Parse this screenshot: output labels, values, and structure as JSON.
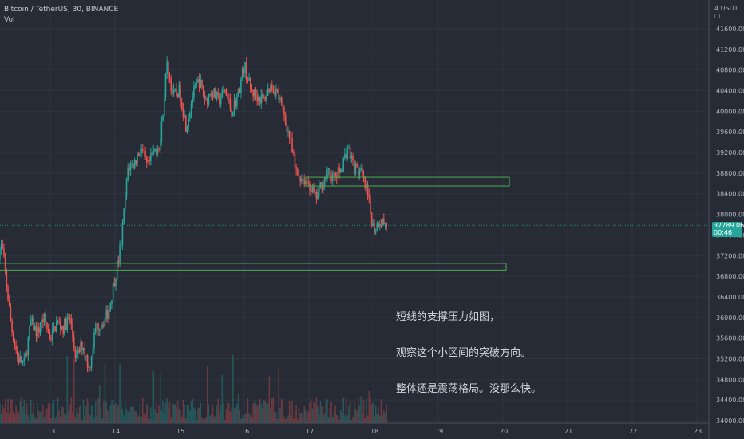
{
  "header": {
    "symbol_line": "Bitcoin / TetherUS, 30, BINANCE",
    "volume_label": "Vol"
  },
  "axis": {
    "currency_label": "4 USDT ▢"
  },
  "price_tag": {
    "price": "37789.06",
    "countdown": "00:46"
  },
  "annotation": {
    "lines": [
      "短线的支撑压力如图，",
      "观察这个小区间的突破方向。",
      "整体还是震荡格局。没那么快。"
    ]
  },
  "colors": {
    "background": "#262b36",
    "up": "#26a69a",
    "down": "#ef5350",
    "zone": "#4caf50",
    "last_price_line": "#26a69a"
  },
  "chart_data": {
    "type": "candlestick",
    "title": "Bitcoin / TetherUS, 30, BINANCE",
    "x_ticks": [
      "13",
      "14",
      "15",
      "16",
      "17",
      "18",
      "19",
      "20",
      "21",
      "22",
      "23"
    ],
    "y_ticks": [
      "34000.00",
      "34400.00",
      "34800.00",
      "35200.00",
      "35600.00",
      "36000.00",
      "36400.00",
      "36800.00",
      "37200.00",
      "37600.00",
      "38000.00",
      "38400.00",
      "38800.00",
      "39200.00",
      "39600.00",
      "40000.00",
      "40400.00",
      "40800.00",
      "41200.00",
      "41600.00"
    ],
    "ylim": [
      34000,
      41800
    ],
    "last_price": 37789.06,
    "price_path": [
      [
        12.2,
        37250
      ],
      [
        12.25,
        37400
      ],
      [
        12.3,
        36900
      ],
      [
        12.4,
        35800
      ],
      [
        12.5,
        35200
      ],
      [
        12.6,
        35100
      ],
      [
        12.7,
        35900
      ],
      [
        12.8,
        35700
      ],
      [
        12.9,
        36000
      ],
      [
        13.0,
        35600
      ],
      [
        13.1,
        35900
      ],
      [
        13.2,
        35800
      ],
      [
        13.3,
        36000
      ],
      [
        13.4,
        35200
      ],
      [
        13.5,
        35500
      ],
      [
        13.6,
        35000
      ],
      [
        13.7,
        35800
      ],
      [
        13.8,
        35900
      ],
      [
        13.9,
        36100
      ],
      [
        14.0,
        36800
      ],
      [
        14.05,
        37100
      ],
      [
        14.1,
        37500
      ],
      [
        14.2,
        38900
      ],
      [
        14.3,
        39000
      ],
      [
        14.4,
        39300
      ],
      [
        14.5,
        38900
      ],
      [
        14.6,
        39200
      ],
      [
        14.7,
        39400
      ],
      [
        14.8,
        40900
      ],
      [
        14.9,
        40300
      ],
      [
        15.0,
        40400
      ],
      [
        15.1,
        39700
      ],
      [
        15.2,
        40300
      ],
      [
        15.3,
        40600
      ],
      [
        15.4,
        40200
      ],
      [
        15.5,
        40400
      ],
      [
        15.6,
        40200
      ],
      [
        15.7,
        40400
      ],
      [
        15.8,
        40000
      ],
      [
        15.9,
        40300
      ],
      [
        16.0,
        40900
      ],
      [
        16.1,
        40400
      ],
      [
        16.2,
        40300
      ],
      [
        16.3,
        40200
      ],
      [
        16.4,
        40500
      ],
      [
        16.5,
        40400
      ],
      [
        16.6,
        40000
      ],
      [
        16.7,
        39500
      ],
      [
        16.8,
        38800
      ],
      [
        16.9,
        38700
      ],
      [
        17.0,
        38600
      ],
      [
        17.1,
        38300
      ],
      [
        17.2,
        38600
      ],
      [
        17.3,
        38800
      ],
      [
        17.4,
        38700
      ],
      [
        17.5,
        38900
      ],
      [
        17.6,
        39300
      ],
      [
        17.7,
        38900
      ],
      [
        17.8,
        38800
      ],
      [
        17.9,
        38400
      ],
      [
        18.0,
        37700
      ],
      [
        18.1,
        37900
      ],
      [
        18.2,
        37789
      ]
    ],
    "zones": [
      {
        "x_from": 16.95,
        "x_to": 20.1,
        "y_low": 38550,
        "y_high": 38720
      },
      {
        "x_from": 12.15,
        "x_to": 20.05,
        "y_low": 36920,
        "y_high": 37050
      }
    ]
  }
}
